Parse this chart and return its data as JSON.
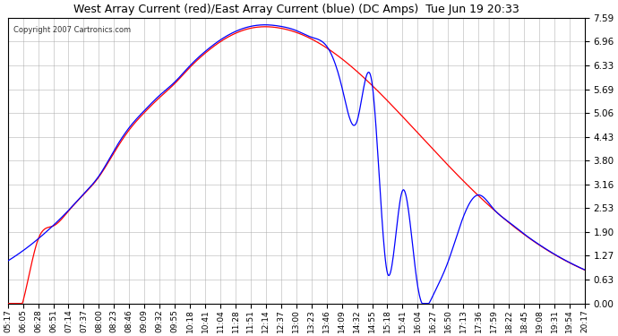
{
  "title": "West Array Current (red)/East Array Current (blue) (DC Amps)  Tue Jun 19 20:33",
  "copyright": "Copyright 2007 Cartronics.com",
  "ylabel": "",
  "ylim": [
    0,
    7.59
  ],
  "yticks": [
    0.0,
    0.63,
    1.27,
    1.9,
    2.53,
    3.16,
    3.8,
    4.43,
    5.06,
    5.69,
    6.33,
    6.96,
    7.59
  ],
  "bg_color": "#ffffff",
  "plot_bg_color": "#ffffff",
  "grid_color": "#aaaaaa",
  "red_color": "#ff0000",
  "blue_color": "#0000ff",
  "x_labels": [
    "05:17",
    "06:05",
    "06:28",
    "06:51",
    "07:14",
    "07:37",
    "08:00",
    "08:23",
    "08:46",
    "09:09",
    "09:32",
    "09:55",
    "10:18",
    "10:41",
    "11:04",
    "11:28",
    "11:51",
    "12:14",
    "12:37",
    "13:00",
    "13:23",
    "13:46",
    "14:09",
    "14:32",
    "14:55",
    "15:18",
    "15:41",
    "16:04",
    "16:27",
    "16:50",
    "17:13",
    "17:36",
    "17:59",
    "18:22",
    "18:45",
    "19:08",
    "19:31",
    "19:54",
    "20:17"
  ]
}
